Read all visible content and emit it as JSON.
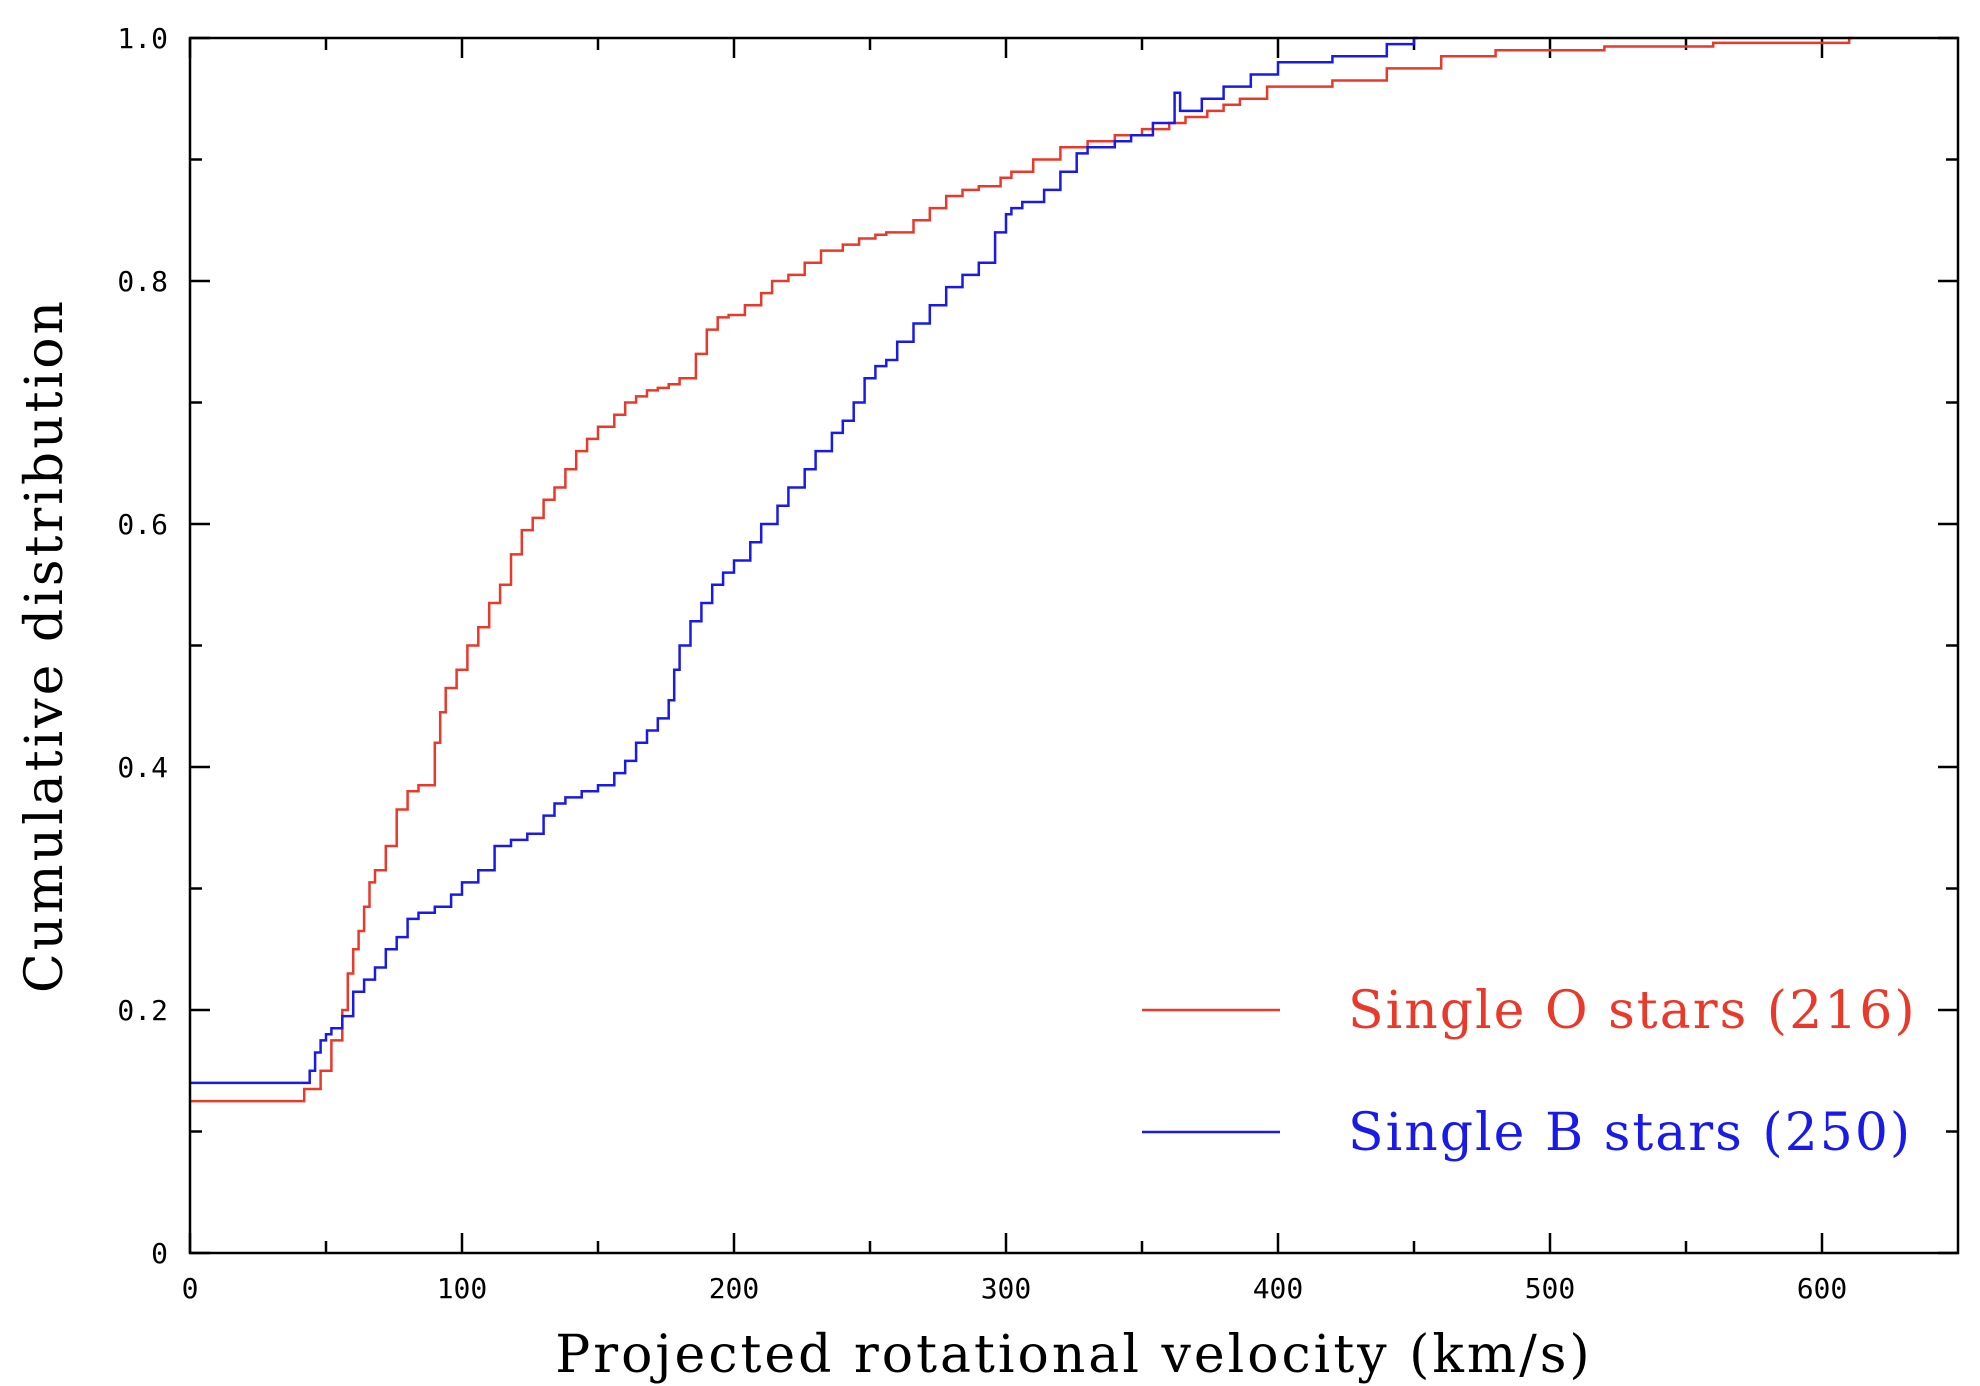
{
  "chart_data": {
    "type": "line",
    "step": true,
    "title": "",
    "xlabel": "Projected rotational velocity (km/s)",
    "ylabel": "Cumulative distribution",
    "xlim": [
      0,
      650
    ],
    "ylim": [
      0,
      1.0
    ],
    "x_ticks": [
      0,
      100,
      200,
      300,
      400,
      500,
      600
    ],
    "x_tick_labels": [
      "0",
      "100",
      "200",
      "300",
      "400",
      "500",
      "600"
    ],
    "x_minor_ticks": [
      50,
      150,
      250,
      350,
      450,
      550
    ],
    "y_ticks": [
      0,
      0.2,
      0.4,
      0.6,
      0.8,
      1.0
    ],
    "y_tick_labels": [
      "0",
      "0.2",
      "0.4",
      "0.6",
      "0.8",
      "1.0"
    ],
    "y_minor_ticks": [
      0.1,
      0.3,
      0.5,
      0.7,
      0.9
    ],
    "legend_position": "bottom-right",
    "series": [
      {
        "name": "Single O stars (216)",
        "color": "#e8392b",
        "x": [
          0,
          42,
          48,
          52,
          56,
          58,
          60,
          62,
          64,
          66,
          68,
          72,
          76,
          80,
          84,
          90,
          92,
          94,
          98,
          102,
          106,
          110,
          114,
          118,
          122,
          126,
          130,
          134,
          138,
          142,
          146,
          150,
          156,
          160,
          164,
          168,
          172,
          176,
          180,
          186,
          190,
          194,
          198,
          204,
          210,
          214,
          220,
          226,
          232,
          240,
          246,
          252,
          256,
          266,
          272,
          278,
          284,
          290,
          298,
          302,
          310,
          320,
          330,
          340,
          350,
          360,
          366,
          374,
          380,
          386,
          396,
          420,
          440,
          460,
          480,
          520,
          560,
          610
        ],
        "values": [
          0.125,
          0.135,
          0.15,
          0.175,
          0.2,
          0.23,
          0.25,
          0.265,
          0.285,
          0.305,
          0.315,
          0.335,
          0.365,
          0.38,
          0.385,
          0.42,
          0.445,
          0.465,
          0.48,
          0.5,
          0.515,
          0.535,
          0.55,
          0.575,
          0.595,
          0.605,
          0.62,
          0.63,
          0.645,
          0.66,
          0.67,
          0.68,
          0.69,
          0.7,
          0.705,
          0.71,
          0.712,
          0.715,
          0.72,
          0.74,
          0.76,
          0.77,
          0.772,
          0.78,
          0.79,
          0.8,
          0.805,
          0.815,
          0.825,
          0.83,
          0.835,
          0.838,
          0.84,
          0.85,
          0.86,
          0.87,
          0.875,
          0.878,
          0.885,
          0.89,
          0.9,
          0.91,
          0.915,
          0.92,
          0.925,
          0.93,
          0.935,
          0.94,
          0.945,
          0.95,
          0.96,
          0.965,
          0.975,
          0.985,
          0.99,
          0.993,
          0.996,
          1.0
        ]
      },
      {
        "name": "Single B stars (250)",
        "color": "#1a1ae8",
        "x": [
          0,
          44,
          46,
          48,
          50,
          52,
          56,
          60,
          64,
          68,
          72,
          76,
          80,
          84,
          90,
          96,
          100,
          106,
          112,
          118,
          124,
          130,
          134,
          138,
          144,
          150,
          156,
          160,
          164,
          168,
          172,
          176,
          178,
          180,
          184,
          188,
          192,
          196,
          200,
          206,
          210,
          216,
          220,
          226,
          230,
          236,
          240,
          244,
          248,
          252,
          256,
          260,
          266,
          272,
          278,
          284,
          290,
          296,
          300,
          302,
          306,
          314,
          320,
          326,
          330,
          340,
          346,
          354,
          362,
          364,
          372,
          380,
          390,
          400,
          420,
          440,
          450
        ],
        "values": [
          0.14,
          0.15,
          0.165,
          0.175,
          0.18,
          0.185,
          0.195,
          0.215,
          0.225,
          0.235,
          0.25,
          0.26,
          0.275,
          0.28,
          0.285,
          0.295,
          0.305,
          0.315,
          0.335,
          0.34,
          0.345,
          0.36,
          0.37,
          0.375,
          0.38,
          0.385,
          0.395,
          0.405,
          0.42,
          0.43,
          0.44,
          0.455,
          0.48,
          0.5,
          0.52,
          0.535,
          0.55,
          0.56,
          0.57,
          0.585,
          0.6,
          0.615,
          0.63,
          0.645,
          0.66,
          0.675,
          0.685,
          0.7,
          0.72,
          0.73,
          0.735,
          0.75,
          0.765,
          0.78,
          0.795,
          0.805,
          0.815,
          0.84,
          0.855,
          0.86,
          0.865,
          0.875,
          0.89,
          0.905,
          0.91,
          0.915,
          0.92,
          0.93,
          0.955,
          0.94,
          0.95,
          0.96,
          0.97,
          0.98,
          0.985,
          0.995,
          1.0
        ]
      }
    ]
  }
}
